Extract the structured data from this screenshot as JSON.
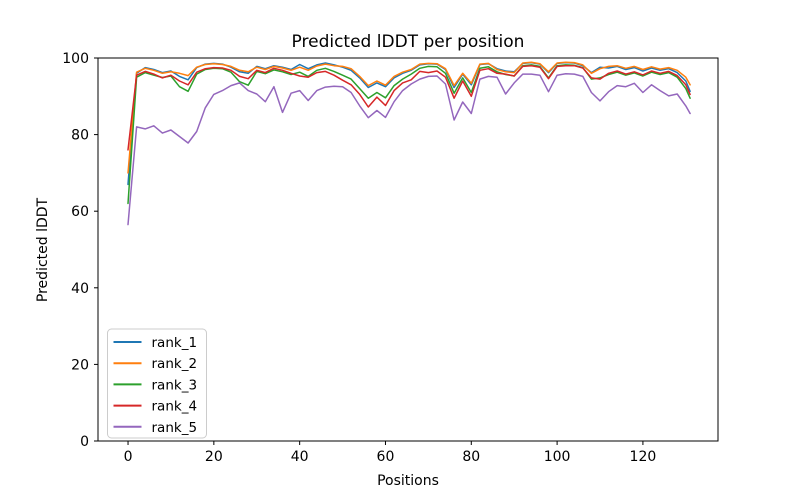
{
  "chart_data": {
    "type": "line",
    "title": "Predicted lDDT per position",
    "xlabel": "Positions",
    "ylabel": "Predicted lDDT",
    "xlim": [
      -7,
      137.5
    ],
    "ylim": [
      0,
      100
    ],
    "xticks": [
      0,
      20,
      40,
      60,
      80,
      100,
      120
    ],
    "yticks": [
      0,
      20,
      40,
      60,
      80,
      100
    ],
    "grid": false,
    "legend_position": "lower left",
    "x": [
      0,
      2,
      4,
      6,
      8,
      10,
      12,
      14,
      16,
      18,
      20,
      22,
      24,
      26,
      28,
      30,
      32,
      34,
      36,
      38,
      40,
      42,
      44,
      46,
      48,
      50,
      52,
      54,
      56,
      58,
      60,
      62,
      64,
      66,
      68,
      70,
      72,
      74,
      76,
      78,
      80,
      82,
      84,
      86,
      88,
      90,
      92,
      94,
      96,
      98,
      100,
      102,
      104,
      106,
      108,
      110,
      112,
      114,
      116,
      118,
      120,
      122,
      124,
      126,
      128,
      130,
      131
    ],
    "series": [
      {
        "name": "rank_1",
        "color": "#1f77b4",
        "values": [
          67,
          96,
          97.5,
          97,
          96.2,
          96.6,
          95.2,
          94.3,
          97.5,
          98.4,
          98.6,
          98.4,
          97.6,
          96.4,
          96,
          97.8,
          97.2,
          98,
          97.6,
          97,
          98.3,
          97.2,
          98.2,
          98.7,
          98.2,
          97.6,
          96.8,
          94.8,
          92.3,
          93.5,
          92.5,
          94.8,
          96,
          96.8,
          98.2,
          98.5,
          98.4,
          97,
          92.3,
          95.8,
          93,
          98.3,
          98.5,
          97.2,
          96.6,
          96.4,
          98.6,
          98.8,
          98.4,
          96.2,
          98.6,
          98.8,
          98.7,
          98,
          96.2,
          97.6,
          97.4,
          97.8,
          97,
          97.5,
          96.6,
          97.4,
          96.8,
          97.2,
          96.2,
          94,
          91.3
        ]
      },
      {
        "name": "rank_2",
        "color": "#ff7f0e",
        "values": [
          70,
          96.3,
          97.3,
          96.8,
          96,
          96.4,
          96,
          95.4,
          97.6,
          98.3,
          98.5,
          98.3,
          97.8,
          96.8,
          96.4,
          97.6,
          97,
          97.8,
          97.4,
          96.8,
          97.6,
          96.8,
          97.9,
          98.4,
          98,
          97.8,
          97.2,
          95.2,
          92.8,
          94,
          92.9,
          95.2,
          96.3,
          97,
          98.4,
          98.6,
          98.5,
          97.2,
          92.8,
          96,
          93.4,
          98.4,
          98.6,
          97,
          96.4,
          96.2,
          98.7,
          98.9,
          98.5,
          96.4,
          98.7,
          98.9,
          98.8,
          98.2,
          96,
          97.2,
          97.8,
          98,
          97.3,
          97.8,
          97,
          97.7,
          97.1,
          97.5,
          96.8,
          95,
          93
        ]
      },
      {
        "name": "rank_3",
        "color": "#2ca02c",
        "values": [
          62,
          95,
          96.2,
          95.5,
          94.9,
          95.3,
          92.5,
          91.3,
          95.8,
          97,
          97.3,
          97.2,
          96.3,
          93.8,
          92.9,
          96.5,
          95.9,
          96.9,
          96.4,
          95.7,
          96.3,
          95.2,
          96.8,
          97.3,
          96.5,
          95.5,
          94.5,
          92,
          89.5,
          91,
          89.6,
          92.8,
          94.5,
          95.8,
          97.3,
          97.8,
          97.7,
          96,
          90.8,
          94.8,
          91,
          97.3,
          97.7,
          96.4,
          95.7,
          95.3,
          98,
          98.2,
          97.8,
          94.8,
          98,
          98.2,
          98.1,
          97.5,
          94.5,
          94.8,
          95.7,
          96.3,
          95.5,
          96.1,
          95.3,
          96.3,
          95.7,
          96.2,
          95,
          92,
          89.5
        ]
      },
      {
        "name": "rank_4",
        "color": "#d62728",
        "values": [
          76,
          95.5,
          96.5,
          95.8,
          94.8,
          95.5,
          94,
          93,
          96.3,
          97.2,
          97.5,
          97.4,
          96.8,
          95.2,
          94.6,
          96.8,
          96.2,
          97.3,
          96.8,
          96,
          95.3,
          95,
          96.2,
          96.5,
          95.5,
          94.2,
          93,
          90.5,
          87.2,
          89.8,
          87.6,
          91.5,
          93.5,
          94.3,
          96.5,
          96.2,
          96.6,
          95,
          89.5,
          94,
          90,
          96.8,
          97.2,
          96,
          95.8,
          95.3,
          97.8,
          98,
          97.6,
          94.6,
          97.8,
          98,
          98,
          97.4,
          94.8,
          94.5,
          96,
          96.6,
          95.8,
          96.4,
          95.6,
          96.6,
          96,
          96.5,
          95.4,
          93,
          90.5
        ]
      },
      {
        "name": "rank_5",
        "color": "#9467bd",
        "values": [
          56.5,
          82,
          81.5,
          82.3,
          80.4,
          81.2,
          79.5,
          77.8,
          80.8,
          87,
          90.5,
          91.5,
          92.8,
          93.5,
          91.5,
          90.6,
          88.6,
          92.5,
          85.8,
          90.8,
          91.5,
          88.9,
          91.5,
          92.4,
          92.6,
          92.5,
          91,
          87.5,
          84.4,
          86.3,
          84.5,
          88.6,
          91.5,
          93.2,
          94.5,
          95.2,
          95.3,
          93.2,
          83.8,
          88.5,
          85.5,
          94.5,
          95.2,
          95,
          90.6,
          93.5,
          95.8,
          95.8,
          95.5,
          91.2,
          95.5,
          95.9,
          95.8,
          95.2,
          91,
          88.8,
          91.2,
          92.8,
          92.5,
          93.4,
          91,
          93,
          91.5,
          90.1,
          90.6,
          87.5,
          85.5
        ]
      }
    ]
  }
}
